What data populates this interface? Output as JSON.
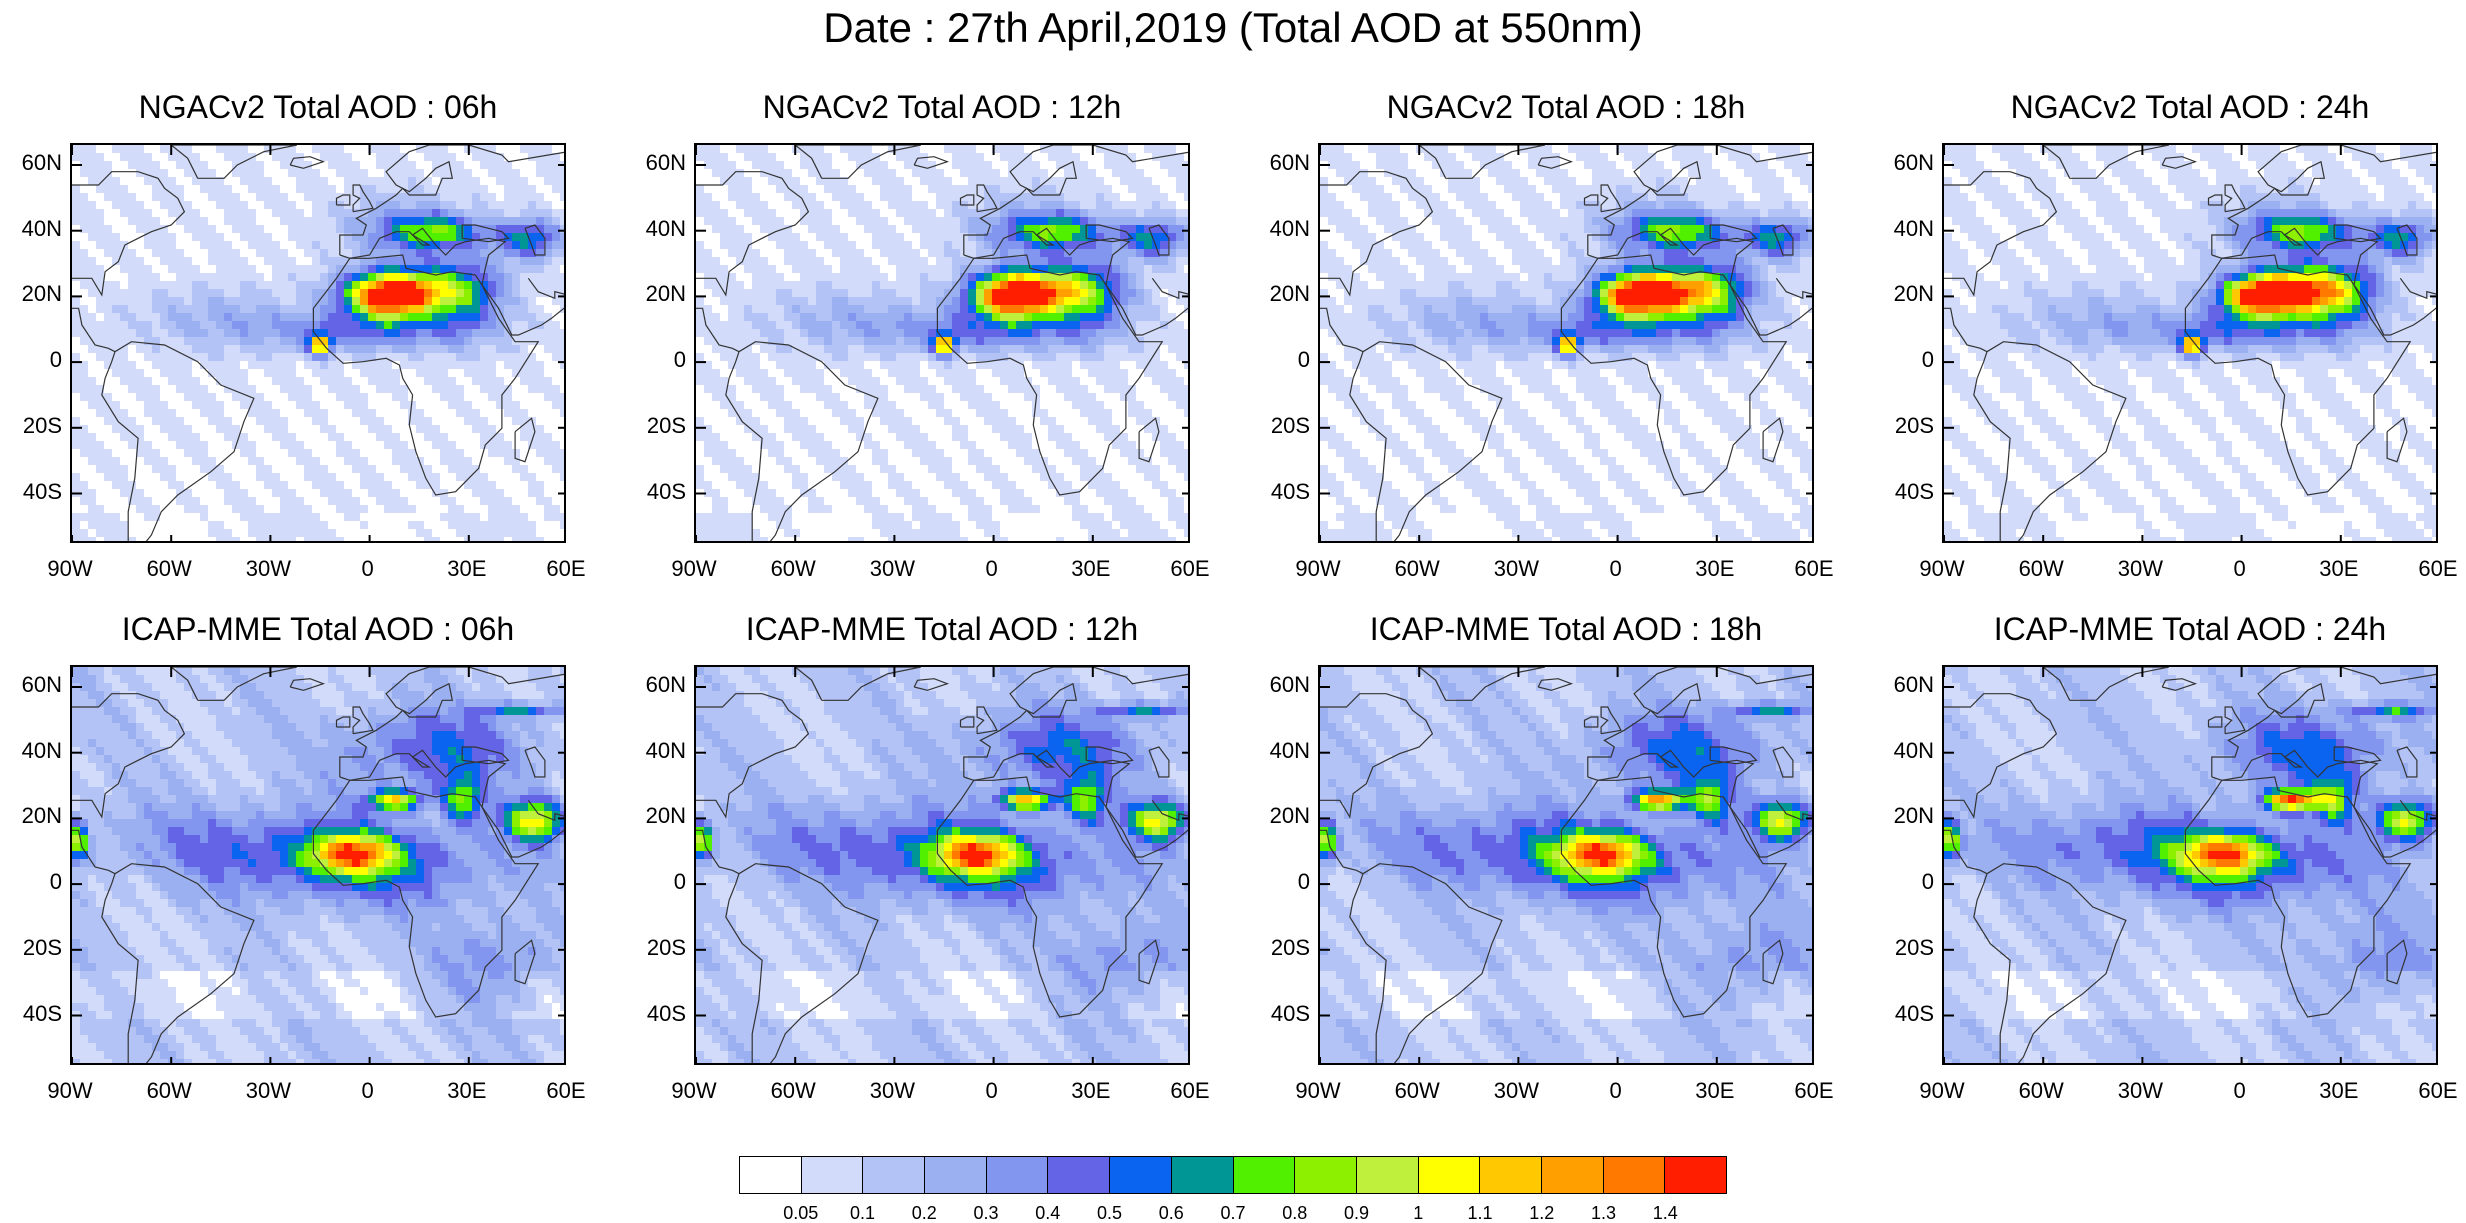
{
  "title": "Date : 27th April,2019 (Total AOD at 550nm)",
  "lat_labels": [
    "60N",
    "40N",
    "20N",
    "0",
    "20S",
    "40S"
  ],
  "lon_labels": [
    "90W",
    "60W",
    "30W",
    "0",
    "30E",
    "60E"
  ],
  "map_extent": {
    "lon": [
      -90,
      60
    ],
    "lat": [
      -50,
      70
    ]
  },
  "panels": [
    {
      "title": "NGACv2 Total AOD : 06h",
      "model": "NGACv2",
      "hour": 6
    },
    {
      "title": "NGACv2 Total AOD : 12h",
      "model": "NGACv2",
      "hour": 12
    },
    {
      "title": "NGACv2 Total AOD : 18h",
      "model": "NGACv2",
      "hour": 18
    },
    {
      "title": "NGACv2 Total AOD : 24h",
      "model": "NGACv2",
      "hour": 24
    },
    {
      "title": "ICAP-MME Total AOD : 06h",
      "model": "ICAP-MME",
      "hour": 6
    },
    {
      "title": "ICAP-MME Total AOD : 12h",
      "model": "ICAP-MME",
      "hour": 12
    },
    {
      "title": "ICAP-MME Total AOD : 18h",
      "model": "ICAP-MME",
      "hour": 18
    },
    {
      "title": "ICAP-MME Total AOD : 24h",
      "model": "ICAP-MME",
      "hour": 24
    }
  ],
  "colorbar": {
    "labels": [
      "0.05",
      "0.1",
      "0.2",
      "0.3",
      "0.4",
      "0.5",
      "0.6",
      "0.7",
      "0.8",
      "0.9",
      "1",
      "1.1",
      "1.2",
      "1.3",
      "1.4"
    ],
    "colors": [
      "#ffffff",
      "#d2dcfa",
      "#b4c3f5",
      "#9bb0f0",
      "#8296f0",
      "#6464e6",
      "#0a64f0",
      "#009696",
      "#50f000",
      "#8cf000",
      "#bef03c",
      "#ffff00",
      "#ffc800",
      "#ffa000",
      "#ff7800",
      "#ff1e00"
    ]
  }
}
